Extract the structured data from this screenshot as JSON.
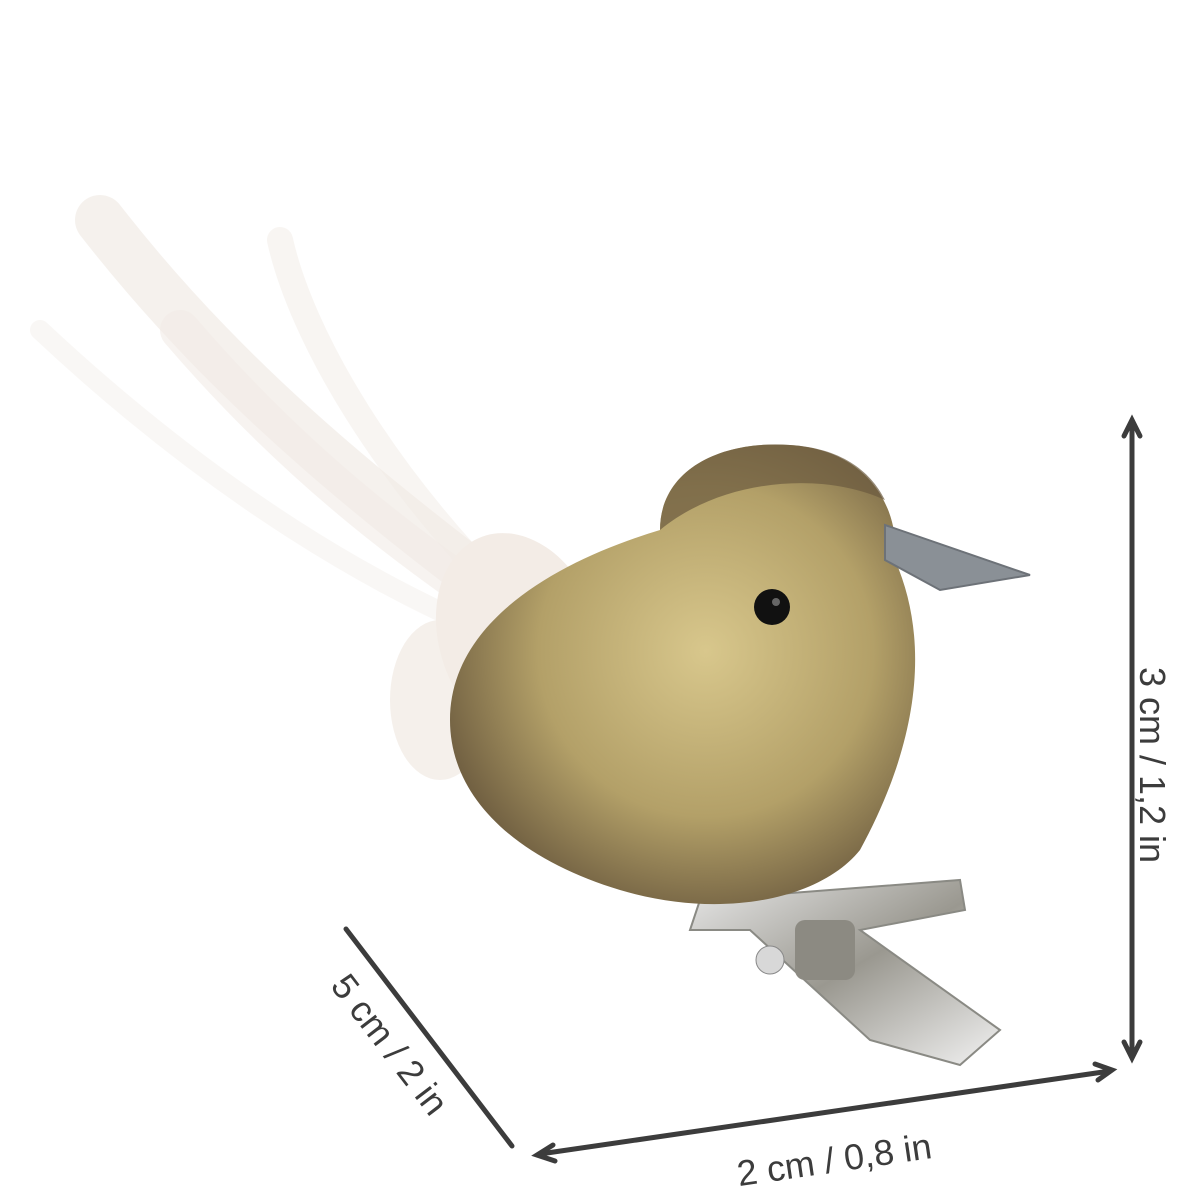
{
  "product": {
    "description_visible": "",
    "colors": {
      "glitter_gold": "#b8a46a",
      "glitter_dark": "#6b5a3e",
      "beak": "#8a9096",
      "feather": "#f3ece6",
      "clip_metal": "#c9c9c9",
      "dimension_lines": "#3c3c3c"
    }
  },
  "dimensions": {
    "height": "3 cm / 1,2 in",
    "width": "2 cm / 0,8 in",
    "length": "5 cm / 2 in"
  }
}
